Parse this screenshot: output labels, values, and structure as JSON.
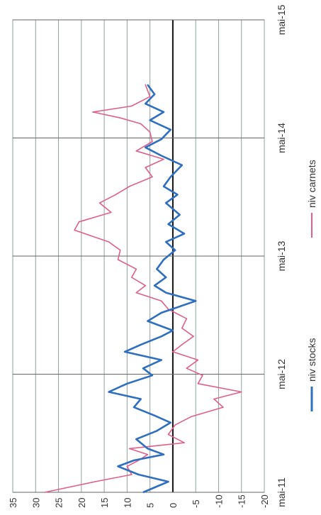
{
  "chart_data": {
    "type": "line",
    "orientation": "rotated-90-ccw",
    "x": [
      "mai-11",
      "mai-12",
      "mai-13",
      "mai-14",
      "mai-15"
    ],
    "x_ticks": [
      "mai-11",
      "mai-12",
      "mai-13",
      "mai-14",
      "mai-15"
    ],
    "y_ticks": [
      "35",
      "30",
      "25",
      "20",
      "15",
      "10",
      "5",
      "0",
      "-5",
      "-10",
      "-15",
      "-20"
    ],
    "ylim": [
      -20,
      35
    ],
    "grid": true,
    "legend_position": "bottom",
    "series": [
      {
        "name": "niv stocks",
        "color": "#2f6fc0",
        "points": [
          [
            2011.33,
            6.5
          ],
          [
            2011.42,
            1.0
          ],
          [
            2011.48,
            7.5
          ],
          [
            2011.55,
            12.0
          ],
          [
            2011.6,
            8.5
          ],
          [
            2011.65,
            2.0
          ],
          [
            2011.7,
            5.5
          ],
          [
            2011.78,
            8.0
          ],
          [
            2011.85,
            3.5
          ],
          [
            2011.92,
            0.5
          ],
          [
            2011.98,
            4.0
          ],
          [
            2012.05,
            8.5
          ],
          [
            2012.12,
            7.0
          ],
          [
            2012.18,
            14.0
          ],
          [
            2012.25,
            10.0
          ],
          [
            2012.32,
            4.5
          ],
          [
            2012.38,
            6.5
          ],
          [
            2012.45,
            2.5
          ],
          [
            2012.52,
            10.5
          ],
          [
            2012.58,
            7.0
          ],
          [
            2012.65,
            2.5
          ],
          [
            2012.7,
            0.0
          ],
          [
            2012.78,
            5.5
          ],
          [
            2012.85,
            2.5
          ],
          [
            2012.95,
            -5.0
          ],
          [
            2013.02,
            1.5
          ],
          [
            2013.08,
            4.0
          ],
          [
            2013.15,
            1.5
          ],
          [
            2013.22,
            3.5
          ],
          [
            2013.3,
            2.0
          ],
          [
            2013.38,
            -0.5
          ],
          [
            2013.45,
            1.5
          ],
          [
            2013.52,
            -2.5
          ],
          [
            2013.6,
            1.0
          ],
          [
            2013.68,
            -1.5
          ],
          [
            2013.78,
            1.5
          ],
          [
            2013.85,
            -1.0
          ],
          [
            2013.92,
            2.0
          ],
          [
            2014.0,
            0.5
          ],
          [
            2014.1,
            -2.0
          ],
          [
            2014.18,
            2.5
          ],
          [
            2014.25,
            6.0
          ],
          [
            2014.32,
            2.5
          ],
          [
            2014.4,
            0.5
          ],
          [
            2014.48,
            5.0
          ],
          [
            2014.55,
            2.0
          ],
          [
            2014.62,
            6.0
          ],
          [
            2014.7,
            4.0
          ],
          [
            2014.78,
            5.5
          ]
        ]
      },
      {
        "name": "niv carnets",
        "color": "#e0608a",
        "points": [
          [
            2011.33,
            28.0
          ],
          [
            2011.42,
            17.0
          ],
          [
            2011.48,
            9.0
          ],
          [
            2011.55,
            10.0
          ],
          [
            2011.6,
            7.5
          ],
          [
            2011.65,
            5.5
          ],
          [
            2011.7,
            9.5
          ],
          [
            2011.75,
            -2.5
          ],
          [
            2011.82,
            1.0
          ],
          [
            2011.9,
            -0.5
          ],
          [
            2011.97,
            -4.0
          ],
          [
            2012.05,
            -11.0
          ],
          [
            2012.12,
            -9.0
          ],
          [
            2012.18,
            -15.0
          ],
          [
            2012.25,
            -5.5
          ],
          [
            2012.32,
            -6.5
          ],
          [
            2012.38,
            -3.0
          ],
          [
            2012.45,
            -5.5
          ],
          [
            2012.52,
            0.0
          ],
          [
            2012.58,
            -2.0
          ],
          [
            2012.65,
            -4.5
          ],
          [
            2012.72,
            -2.0
          ],
          [
            2012.8,
            -3.0
          ],
          [
            2012.88,
            1.0
          ],
          [
            2012.95,
            2.5
          ],
          [
            2013.02,
            8.0
          ],
          [
            2013.08,
            6.0
          ],
          [
            2013.15,
            9.0
          ],
          [
            2013.22,
            8.0
          ],
          [
            2013.3,
            12.0
          ],
          [
            2013.38,
            11.5
          ],
          [
            2013.45,
            14.0
          ],
          [
            2013.55,
            21.5
          ],
          [
            2013.62,
            20.5
          ],
          [
            2013.7,
            13.5
          ],
          [
            2013.78,
            16.0
          ],
          [
            2013.85,
            12.5
          ],
          [
            2013.92,
            9.5
          ],
          [
            2014.0,
            4.5
          ],
          [
            2014.08,
            6.0
          ],
          [
            2014.15,
            2.0
          ],
          [
            2014.22,
            8.0
          ],
          [
            2014.3,
            4.5
          ],
          [
            2014.38,
            5.0
          ],
          [
            2014.45,
            7.0
          ],
          [
            2014.5,
            11.5
          ],
          [
            2014.55,
            17.5
          ],
          [
            2014.6,
            9.0
          ],
          [
            2014.68,
            5.0
          ],
          [
            2014.78,
            6.0
          ]
        ]
      }
    ]
  }
}
